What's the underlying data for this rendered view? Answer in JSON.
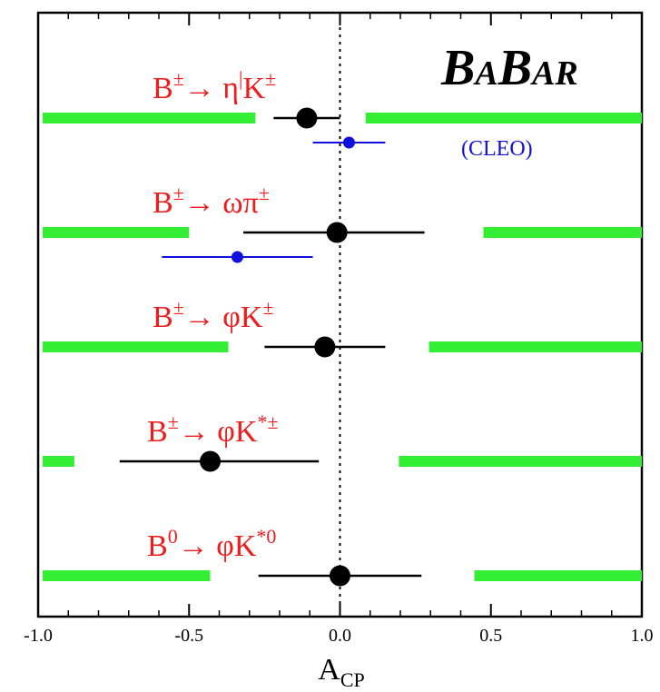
{
  "chart_data": {
    "type": "scatter",
    "title": "",
    "xlabel_main": "A",
    "xlabel_sub": "CP",
    "ylabel": "",
    "xlim": [
      -1.0,
      1.0
    ],
    "x_ticks": [
      {
        "value": -1.0,
        "label": "-1.0"
      },
      {
        "value": -0.5,
        "label": "-0.5"
      },
      {
        "value": 0.0,
        "label": "0.0"
      },
      {
        "value": 0.5,
        "label": "0.5"
      },
      {
        "value": 1.0,
        "label": "1.0"
      }
    ],
    "reference_line": {
      "x": 0.0,
      "style": "dotted"
    },
    "logo": {
      "parts": [
        [
          "B",
          "big"
        ],
        [
          "A",
          "small"
        ],
        [
          "B",
          "big"
        ],
        [
          "AR",
          "small"
        ]
      ]
    },
    "colors": {
      "babar": "#000000",
      "cleo": "#1010dd",
      "excluded_region": "#33ee33",
      "label": "#ee1c1c"
    },
    "rows": [
      {
        "label": {
          "base": "B",
          "sup1": "±",
          "arrow": "→ ",
          "particle": "η",
          "prime": "|",
          "meson": "K",
          "sup2": "±"
        },
        "babar": {
          "value": -0.11,
          "low": -0.22,
          "high": 0.0
        },
        "cleo": {
          "value": 0.03,
          "low": -0.09,
          "high": 0.15,
          "label": "(CLEO)"
        },
        "excluded": [
          [
            -1.0,
            -0.28
          ],
          [
            0.07,
            1.0
          ]
        ]
      },
      {
        "label": {
          "base": "B",
          "sup1": "±",
          "arrow": "→ ",
          "particle": "ωπ",
          "prime": "",
          "meson": "",
          "sup2": "±"
        },
        "babar": {
          "value": -0.01,
          "low": -0.32,
          "high": 0.28
        },
        "cleo": {
          "value": -0.34,
          "low": -0.59,
          "high": -0.09,
          "label": ""
        },
        "excluded": [
          [
            -1.0,
            -0.5
          ],
          [
            0.46,
            1.0
          ]
        ]
      },
      {
        "label": {
          "base": "B",
          "sup1": "±",
          "arrow": "→ ",
          "particle": "φ",
          "prime": "",
          "meson": "K",
          "sup2": "±"
        },
        "babar": {
          "value": -0.05,
          "low": -0.25,
          "high": 0.15
        },
        "excluded": [
          [
            -1.0,
            -0.37
          ],
          [
            0.28,
            1.0
          ]
        ]
      },
      {
        "label": {
          "base": "B",
          "sup1": "±",
          "arrow": "→ ",
          "particle": "φ",
          "prime": "",
          "meson": "K",
          "sup2": "*±"
        },
        "babar": {
          "value": -0.43,
          "low": -0.73,
          "high": -0.07
        },
        "excluded": [
          [
            -1.0,
            -0.88
          ],
          [
            0.18,
            1.0
          ]
        ]
      },
      {
        "label": {
          "base": "B",
          "sup1": "0",
          "arrow": "→ ",
          "particle": "φ",
          "prime": "",
          "meson": "K",
          "sup2": "*0"
        },
        "babar": {
          "value": 0.0,
          "low": -0.27,
          "high": 0.27
        },
        "excluded": [
          [
            -1.0,
            -0.43
          ],
          [
            0.43,
            1.0
          ]
        ]
      }
    ]
  }
}
